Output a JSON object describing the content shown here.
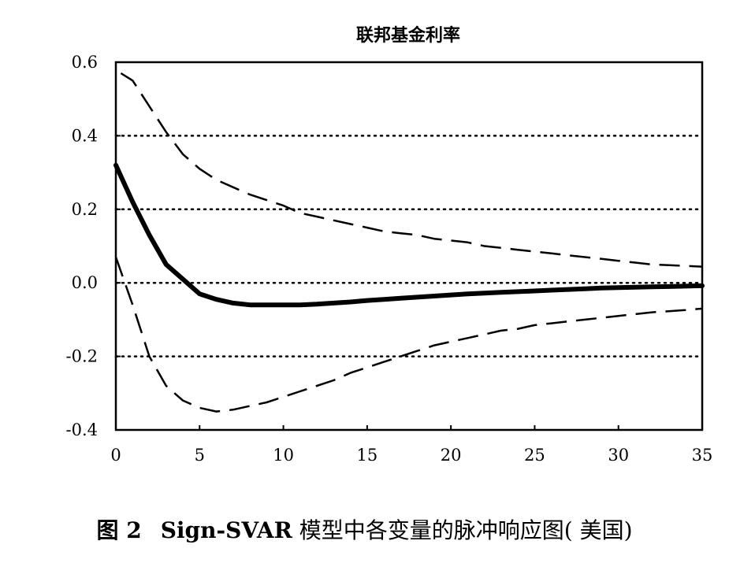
{
  "chart_data": {
    "type": "line",
    "title": "联邦基金利率",
    "xlabel": "",
    "ylabel": "",
    "xlim": [
      0,
      35
    ],
    "ylim": [
      -0.4,
      0.6
    ],
    "x_ticks": [
      "0",
      "5",
      "10",
      "15",
      "20",
      "25",
      "30",
      "35"
    ],
    "y_ticks": [
      "0.6",
      "0.4",
      "0.2",
      "0.0",
      "-0.2",
      "-0.4"
    ],
    "grid": "horizontal dotted at 0.4, 0.2, 0.0, -0.2",
    "series": [
      {
        "style": "solid-thick",
        "x": [
          0,
          1,
          2,
          3,
          4,
          5,
          6,
          7,
          8,
          9,
          10,
          11,
          12,
          13,
          14,
          15,
          16,
          17,
          18,
          19,
          20,
          21,
          22,
          23,
          24,
          25,
          26,
          27,
          28,
          29,
          30,
          31,
          32,
          33,
          34,
          35
        ],
        "values": [
          0.32,
          0.22,
          0.13,
          0.05,
          0.01,
          -0.03,
          -0.045,
          -0.055,
          -0.06,
          -0.06,
          -0.06,
          -0.06,
          -0.058,
          -0.055,
          -0.052,
          -0.048,
          -0.045,
          -0.042,
          -0.039,
          -0.036,
          -0.033,
          -0.03,
          -0.028,
          -0.026,
          -0.024,
          -0.022,
          -0.02,
          -0.018,
          -0.016,
          -0.014,
          -0.013,
          -0.012,
          -0.011,
          -0.01,
          -0.009,
          -0.008
        ]
      },
      {
        "style": "dashed-upper",
        "x": [
          0.3,
          1,
          2,
          3,
          4,
          5,
          6,
          7,
          8,
          9,
          10,
          11,
          12,
          13,
          14,
          15,
          16,
          17,
          18,
          19,
          20,
          21,
          22,
          23,
          24,
          25,
          26,
          27,
          28,
          29,
          30,
          31,
          32,
          33,
          34,
          35
        ],
        "values": [
          0.57,
          0.55,
          0.48,
          0.41,
          0.35,
          0.31,
          0.28,
          0.26,
          0.24,
          0.225,
          0.21,
          0.19,
          0.18,
          0.17,
          0.16,
          0.15,
          0.14,
          0.135,
          0.13,
          0.12,
          0.115,
          0.11,
          0.1,
          0.095,
          0.09,
          0.085,
          0.08,
          0.075,
          0.07,
          0.065,
          0.06,
          0.055,
          0.05,
          0.048,
          0.046,
          0.044
        ]
      },
      {
        "style": "dashed-lower",
        "x": [
          0,
          1,
          2,
          3,
          4,
          5,
          6,
          7,
          8,
          9,
          10,
          11,
          12,
          13,
          14,
          15,
          16,
          17,
          18,
          19,
          20,
          21,
          22,
          23,
          24,
          25,
          26,
          27,
          28,
          29,
          30,
          31,
          32,
          33,
          34,
          35
        ],
        "values": [
          0.07,
          -0.06,
          -0.2,
          -0.28,
          -0.32,
          -0.34,
          -0.35,
          -0.345,
          -0.335,
          -0.325,
          -0.31,
          -0.295,
          -0.28,
          -0.265,
          -0.245,
          -0.23,
          -0.215,
          -0.2,
          -0.185,
          -0.17,
          -0.16,
          -0.15,
          -0.14,
          -0.13,
          -0.125,
          -0.115,
          -0.11,
          -0.105,
          -0.1,
          -0.095,
          -0.09,
          -0.085,
          -0.08,
          -0.077,
          -0.074,
          -0.07
        ]
      }
    ]
  },
  "caption": {
    "figure_number": "图 2",
    "model": "Sign-SVAR",
    "text": "模型中各变量的脉冲响应图",
    "region": "( 美国)"
  }
}
